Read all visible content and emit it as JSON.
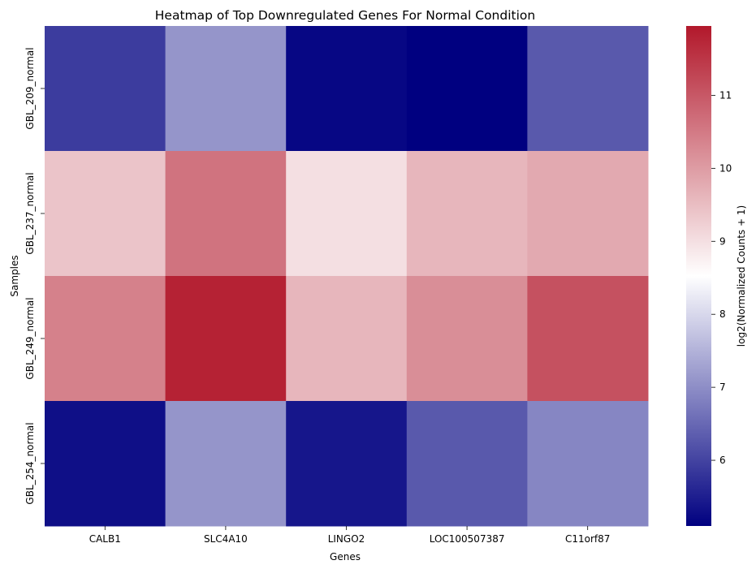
{
  "chart_data": {
    "type": "heatmap",
    "title": "Heatmap of Top Downregulated Genes For Normal Condition",
    "xlabel": "Genes",
    "ylabel": "Samples",
    "x_categories": [
      "CALB1",
      "SLC4A10",
      "LINGO2",
      "LOC100507387",
      "C11orf87"
    ],
    "y_categories": [
      "GBL_209_normal",
      "GBL_237_normal",
      "GBL_249_normal",
      "GBL_254_normal"
    ],
    "values": [
      [
        5.9,
        7.1,
        5.2,
        5.1,
        6.3
      ],
      [
        9.4,
        10.6,
        9.0,
        9.6,
        9.8
      ],
      [
        10.4,
        11.8,
        9.6,
        10.2,
        11.1
      ],
      [
        5.3,
        7.1,
        5.4,
        6.3,
        6.9
      ]
    ],
    "colorbar": {
      "label": "log2(Normalized Counts + 1)",
      "min": 5.1,
      "max": 11.95,
      "ticks": [
        6,
        7,
        8,
        9,
        10,
        11
      ],
      "colormap": "seismic",
      "stops": [
        "#000080",
        "#ffffff",
        "#b2182b"
      ]
    }
  }
}
